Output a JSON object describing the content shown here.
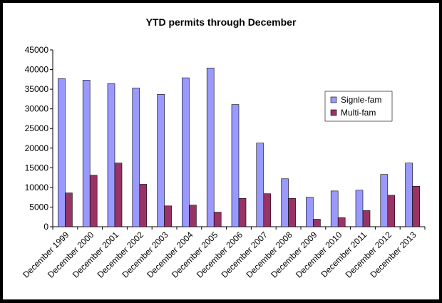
{
  "chart_data": {
    "type": "bar",
    "title": "YTD permits through December",
    "xlabel": "",
    "ylabel": "",
    "ylim": [
      0,
      45000
    ],
    "yticks": [
      0,
      5000,
      10000,
      15000,
      20000,
      25000,
      30000,
      35000,
      40000,
      45000
    ],
    "grid": false,
    "legend_position": "right",
    "categories": [
      "December 1999",
      "December 2000",
      "December 2001",
      "December 2002",
      "December 2003",
      "December 2004",
      "December 2005",
      "December 2006",
      "December 2007",
      "December 2008",
      "December 2009",
      "December 2010",
      "December 2011",
      "December 2012",
      "December 2013"
    ],
    "series": [
      {
        "name": "Signle-fam",
        "color": "#9999ff",
        "values": [
          37700,
          37300,
          36400,
          35300,
          33700,
          37900,
          40400,
          31100,
          21300,
          12200,
          7500,
          9100,
          9300,
          13300,
          16200
        ]
      },
      {
        "name": "Multi-fam",
        "color": "#993366",
        "values": [
          8600,
          13100,
          16200,
          10800,
          5300,
          5500,
          3700,
          7200,
          8400,
          7200,
          1900,
          2300,
          4100,
          8000,
          10300
        ]
      }
    ]
  }
}
